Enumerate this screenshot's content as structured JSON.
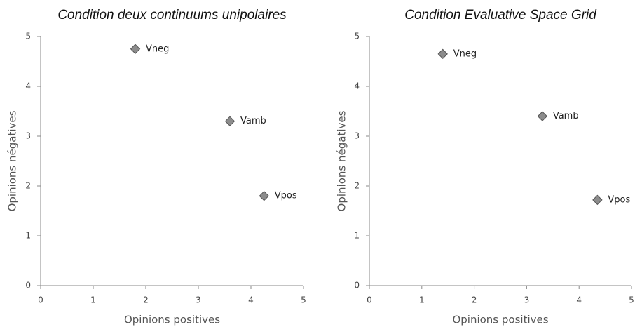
{
  "chart_data": [
    {
      "type": "scatter",
      "title": "Condition deux continuums unipolaires",
      "xlabel": "Opinions positives",
      "ylabel": "Opinions négatives",
      "labels": [
        "Vneg",
        "Vamb",
        "Vpos"
      ],
      "x": [
        1.8,
        3.6,
        4.25
      ],
      "y": [
        4.75,
        3.3,
        1.8
      ],
      "color": "#8c8c8c",
      "xlim": [
        0,
        5
      ],
      "ylim": [
        0,
        5
      ],
      "xticks": [
        0,
        1,
        2,
        3,
        4,
        5
      ],
      "yticks": [
        0,
        1,
        2,
        3,
        4,
        5
      ]
    },
    {
      "type": "scatter",
      "title": "Condition Evaluative Space Grid",
      "xlabel": "Opinions positives",
      "ylabel": "Opinions négatives",
      "labels": [
        "Vneg",
        "Vamb",
        "Vpos"
      ],
      "x": [
        1.4,
        3.3,
        4.35
      ],
      "y": [
        4.65,
        3.4,
        1.72
      ],
      "color": "#8c8c8c",
      "xlim": [
        0,
        5
      ],
      "ylim": [
        0,
        5
      ],
      "xticks": [
        0,
        1,
        2,
        3,
        4,
        5
      ],
      "yticks": [
        0,
        1,
        2,
        3,
        4,
        5
      ]
    }
  ]
}
